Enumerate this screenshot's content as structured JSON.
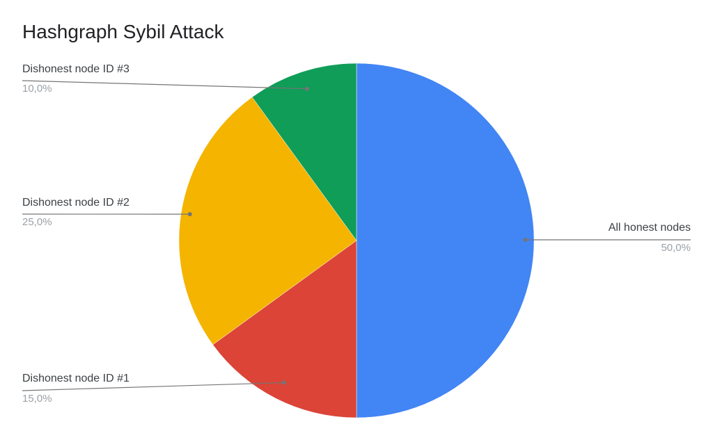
{
  "chart_data": {
    "type": "pie",
    "title": "Hashgraph Sybil Attack",
    "legend": "labels outside slices with leader lines",
    "slices": [
      {
        "label": "All honest nodes",
        "value": 50.0,
        "display": "50,0%",
        "color": "#4285f4"
      },
      {
        "label": "Dishonest node ID #1",
        "value": 15.0,
        "display": "15,0%",
        "color": "#db4437"
      },
      {
        "label": "Dishonest node ID #2",
        "value": 25.0,
        "display": "25,0%",
        "color": "#f4b400"
      },
      {
        "label": "Dishonest node ID #3",
        "value": 10.0,
        "display": "10,0%",
        "color": "#0f9d58"
      }
    ]
  }
}
